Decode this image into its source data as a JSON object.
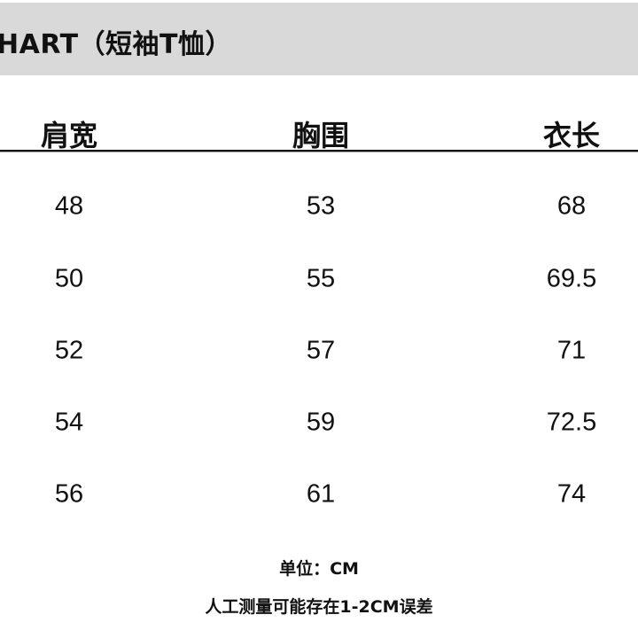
{
  "title": "HART（短袖T恤）",
  "table": {
    "headers": [
      "肩宽",
      "胸围",
      "衣长"
    ],
    "rows": [
      [
        "48",
        "53",
        "68"
      ],
      [
        "50",
        "55",
        "69.5"
      ],
      [
        "52",
        "57",
        "71"
      ],
      [
        "54",
        "59",
        "72.5"
      ],
      [
        "56",
        "61",
        "74"
      ]
    ]
  },
  "notes": {
    "unit": "单位：CM",
    "error": "人工测量可能存在1-2CM误差"
  },
  "colors": {
    "banner": "#d9d9d9",
    "text": "#111111"
  }
}
